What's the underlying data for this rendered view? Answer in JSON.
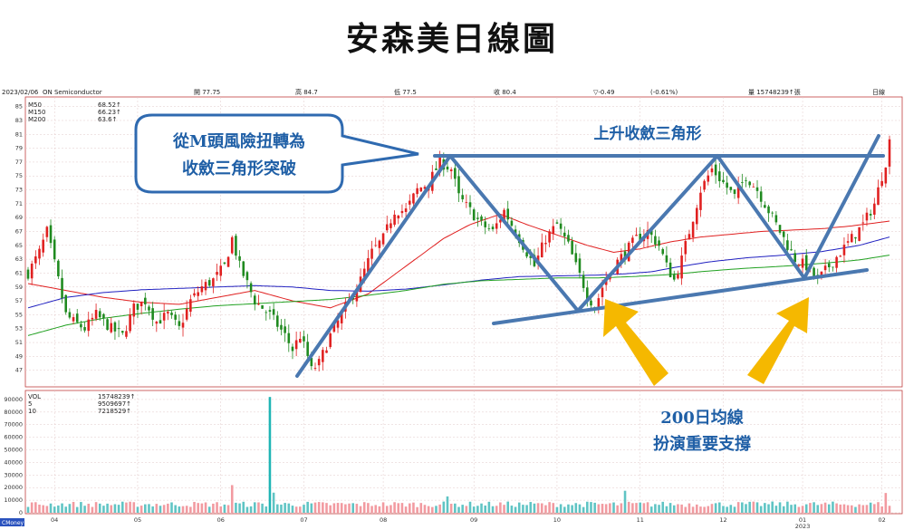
{
  "title": "安森美日線圖",
  "header": {
    "date": "2023/02/06",
    "name": "ON Semiconductor",
    "open": "開 77.75",
    "high": "高 84.7",
    "low": "低 77.5",
    "close": "收 80.4",
    "change": "▽-0.49",
    "pct": "(-0.61%)",
    "volume": "量 15748239↑張",
    "period": "日線"
  },
  "ma_legend": [
    {
      "label": "M50",
      "value": "68.52↑",
      "color": "#e02020"
    },
    {
      "label": "M150",
      "value": "66.23↑",
      "color": "#2020c0"
    },
    {
      "label": "M200",
      "value": "63.6↑",
      "color": "#20a020"
    }
  ],
  "vol_legend": [
    {
      "label": "VOL",
      "value": "15748239↑",
      "color": "#333333"
    },
    {
      "label": "5",
      "value": "9509697↑",
      "color": "#e02020"
    },
    {
      "label": "10",
      "value": "7218529↑",
      "color": "#2020c0"
    }
  ],
  "annotations": {
    "callout_line1": "從M頭風險扭轉為",
    "callout_line2": "收斂三角形突破",
    "triangle_label": "上升收斂三角形",
    "support_line1": "200日均線",
    "support_line2": "扮演重要支撐"
  },
  "watermark": "CMoney",
  "chart_data": {
    "type": "candlestick",
    "price_axis": {
      "ylim": [
        45,
        86
      ],
      "ticks": [
        47,
        49,
        51,
        53,
        55,
        57,
        59,
        61,
        63,
        65,
        67,
        69,
        71,
        73,
        75,
        77,
        79,
        81,
        83,
        85
      ]
    },
    "volume_axis": {
      "ylim": [
        0,
        95000
      ],
      "ticks": [
        0,
        10000,
        20000,
        30000,
        40000,
        50000,
        60000,
        70000,
        80000,
        90000
      ],
      "tick_labels": [
        "0",
        "10000",
        "20000",
        "30000",
        "40000",
        "50000",
        "60000",
        "70000",
        "80000",
        "90000"
      ]
    },
    "month_labels": [
      {
        "label": "04",
        "index": 7
      },
      {
        "label": "05",
        "index": 29
      },
      {
        "label": "06",
        "index": 51
      },
      {
        "label": "07",
        "index": 73
      },
      {
        "label": "08",
        "index": 94
      },
      {
        "label": "09",
        "index": 118
      },
      {
        "label": "10",
        "index": 140
      },
      {
        "label": "11",
        "index": 162
      },
      {
        "label": "12",
        "index": 184
      },
      {
        "label": "01",
        "index": 205
      },
      {
        "label": "02",
        "index": 226
      }
    ],
    "year_label": {
      "label": "2023",
      "index": 205
    },
    "close_anchors": [
      [
        0,
        61
      ],
      [
        3,
        64
      ],
      [
        5,
        67
      ],
      [
        8,
        60
      ],
      [
        10,
        55
      ],
      [
        12,
        54
      ],
      [
        15,
        53
      ],
      [
        18,
        55
      ],
      [
        22,
        53
      ],
      [
        25,
        52
      ],
      [
        28,
        56
      ],
      [
        31,
        57
      ],
      [
        34,
        54
      ],
      [
        37,
        55
      ],
      [
        40,
        53
      ],
      [
        43,
        57
      ],
      [
        46,
        59
      ],
      [
        49,
        60
      ],
      [
        52,
        62
      ],
      [
        54,
        66
      ],
      [
        56,
        62
      ],
      [
        60,
        57
      ],
      [
        64,
        55
      ],
      [
        68,
        52
      ],
      [
        70,
        50
      ],
      [
        72,
        52
      ],
      [
        74,
        49
      ],
      [
        75,
        47
      ],
      [
        77,
        48
      ],
      [
        80,
        52
      ],
      [
        83,
        55
      ],
      [
        86,
        58
      ],
      [
        88,
        60
      ],
      [
        91,
        64
      ],
      [
        94,
        66
      ],
      [
        97,
        70
      ],
      [
        100,
        70
      ],
      [
        103,
        73
      ],
      [
        106,
        74
      ],
      [
        109,
        77
      ],
      [
        112,
        76
      ],
      [
        114,
        72
      ],
      [
        117,
        70
      ],
      [
        120,
        68
      ],
      [
        123,
        67
      ],
      [
        126,
        70
      ],
      [
        128,
        68
      ],
      [
        131,
        65
      ],
      [
        134,
        62
      ],
      [
        137,
        66
      ],
      [
        140,
        68
      ],
      [
        143,
        65
      ],
      [
        145,
        62
      ],
      [
        148,
        58
      ],
      [
        150,
        56
      ],
      [
        152,
        59
      ],
      [
        155,
        62
      ],
      [
        158,
        64
      ],
      [
        161,
        66
      ],
      [
        164,
        67
      ],
      [
        167,
        65
      ],
      [
        169,
        62
      ],
      [
        171,
        60
      ],
      [
        173,
        63
      ],
      [
        176,
        69
      ],
      [
        178,
        73
      ],
      [
        181,
        76
      ],
      [
        184,
        74
      ],
      [
        187,
        72
      ],
      [
        190,
        75
      ],
      [
        193,
        73
      ],
      [
        196,
        70
      ],
      [
        199,
        67
      ],
      [
        201,
        65
      ],
      [
        203,
        63
      ],
      [
        206,
        62
      ],
      [
        209,
        60
      ],
      [
        212,
        62
      ],
      [
        215,
        64
      ],
      [
        218,
        66
      ],
      [
        221,
        68
      ],
      [
        224,
        71
      ],
      [
        226,
        75
      ],
      [
        227,
        77
      ],
      [
        228,
        80
      ]
    ],
    "ma_anchors": {
      "M50": [
        [
          0,
          59.5
        ],
        [
          10,
          58.5
        ],
        [
          20,
          57.5
        ],
        [
          30,
          56.8
        ],
        [
          40,
          56.5
        ],
        [
          50,
          57.5
        ],
        [
          60,
          58.5
        ],
        [
          70,
          57
        ],
        [
          80,
          56
        ],
        [
          90,
          58
        ],
        [
          100,
          62
        ],
        [
          110,
          66
        ],
        [
          117,
          68
        ],
        [
          125,
          69.5
        ],
        [
          132,
          68
        ],
        [
          140,
          66.5
        ],
        [
          148,
          65
        ],
        [
          155,
          64
        ],
        [
          162,
          64.5
        ],
        [
          170,
          65.5
        ],
        [
          178,
          66.2
        ],
        [
          186,
          66.6
        ],
        [
          194,
          67
        ],
        [
          202,
          67.2
        ],
        [
          210,
          67.4
        ],
        [
          218,
          67.8
        ],
        [
          228,
          68.5
        ]
      ],
      "M150": [
        [
          0,
          56
        ],
        [
          10,
          57.5
        ],
        [
          20,
          58.2
        ],
        [
          30,
          58.6
        ],
        [
          40,
          58.8
        ],
        [
          50,
          59
        ],
        [
          60,
          59.2
        ],
        [
          70,
          59
        ],
        [
          80,
          58.5
        ],
        [
          90,
          58.4
        ],
        [
          100,
          58.7
        ],
        [
          110,
          59.3
        ],
        [
          120,
          60
        ],
        [
          130,
          60.5
        ],
        [
          140,
          60.6
        ],
        [
          150,
          60.7
        ],
        [
          158,
          60.9
        ],
        [
          165,
          61.2
        ],
        [
          172,
          61.9
        ],
        [
          180,
          62.6
        ],
        [
          190,
          63.2
        ],
        [
          200,
          63.6
        ],
        [
          210,
          64.1
        ],
        [
          220,
          65
        ],
        [
          228,
          66.2
        ]
      ],
      "M200": [
        [
          0,
          52
        ],
        [
          10,
          53.5
        ],
        [
          20,
          54.5
        ],
        [
          30,
          55.2
        ],
        [
          40,
          55.8
        ],
        [
          50,
          56.3
        ],
        [
          60,
          56.6
        ],
        [
          70,
          56.9
        ],
        [
          80,
          57.2
        ],
        [
          90,
          57.8
        ],
        [
          100,
          58.5
        ],
        [
          110,
          59.4
        ],
        [
          120,
          59.9
        ],
        [
          130,
          60.1
        ],
        [
          140,
          60.3
        ],
        [
          150,
          60.3
        ],
        [
          160,
          60.5
        ],
        [
          170,
          60.8
        ],
        [
          180,
          61.3
        ],
        [
          190,
          61.7
        ],
        [
          200,
          62
        ],
        [
          210,
          62.4
        ],
        [
          220,
          62.9
        ],
        [
          228,
          63.6
        ]
      ]
    },
    "volume_spikes": [
      {
        "index": 54,
        "value": 22000
      },
      {
        "index": 64,
        "value": 92000
      },
      {
        "index": 65,
        "value": 16000
      },
      {
        "index": 111,
        "value": 13000
      },
      {
        "index": 158,
        "value": 17500
      },
      {
        "index": 227,
        "value": 15748
      }
    ],
    "grid": true,
    "candle_colors": {
      "up": "#e02020",
      "down": "#1f8a1f"
    }
  }
}
